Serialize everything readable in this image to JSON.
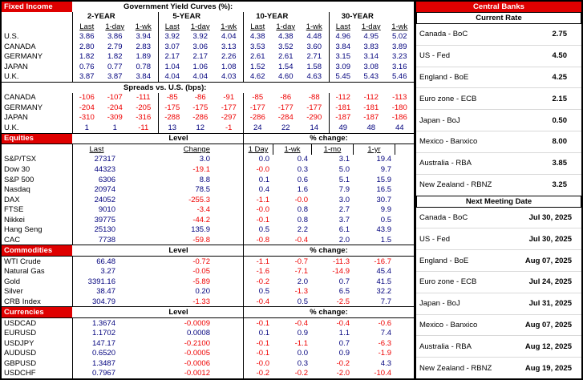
{
  "colors": {
    "section_red": "#df0000",
    "value_navy": "#00007d",
    "negative_red": "#ee0000"
  },
  "fixed_income": {
    "section_label": "Fixed Income",
    "title": "Government Yield Curves (%):",
    "groups": [
      "2-YEAR",
      "5-YEAR",
      "10-YEAR",
      "30-YEAR"
    ],
    "subheaders": [
      "Last",
      "1-day",
      "1-wk"
    ],
    "yields": [
      {
        "label": "U.S.",
        "values": [
          "3.86",
          "3.86",
          "3.94",
          "3.92",
          "3.92",
          "4.04",
          "4.38",
          "4.38",
          "4.48",
          "4.96",
          "4.95",
          "5.02"
        ]
      },
      {
        "label": "CANADA",
        "values": [
          "2.80",
          "2.79",
          "2.83",
          "3.07",
          "3.06",
          "3.13",
          "3.53",
          "3.52",
          "3.60",
          "3.84",
          "3.83",
          "3.89"
        ]
      },
      {
        "label": "GERMANY",
        "values": [
          "1.82",
          "1.82",
          "1.89",
          "2.17",
          "2.17",
          "2.26",
          "2.61",
          "2.61",
          "2.71",
          "3.15",
          "3.14",
          "3.23"
        ]
      },
      {
        "label": "JAPAN",
        "values": [
          "0.76",
          "0.77",
          "0.78",
          "1.04",
          "1.06",
          "1.08",
          "1.52",
          "1.54",
          "1.58",
          "3.09",
          "3.08",
          "3.16"
        ]
      },
      {
        "label": "U.K.",
        "values": [
          "3.87",
          "3.87",
          "3.84",
          "4.04",
          "4.04",
          "4.03",
          "4.62",
          "4.60",
          "4.63",
          "5.45",
          "5.43",
          "5.46"
        ]
      }
    ],
    "spreads_title": "Spreads vs. U.S. (bps):",
    "spreads": [
      {
        "label": "CANADA",
        "values": [
          "-106",
          "-107",
          "-111",
          "-85",
          "-86",
          "-91",
          "-85",
          "-86",
          "-88",
          "-112",
          "-112",
          "-113"
        ]
      },
      {
        "label": "GERMANY",
        "values": [
          "-204",
          "-204",
          "-205",
          "-175",
          "-175",
          "-177",
          "-177",
          "-177",
          "-177",
          "-181",
          "-181",
          "-180"
        ]
      },
      {
        "label": "JAPAN",
        "values": [
          "-310",
          "-309",
          "-316",
          "-288",
          "-286",
          "-297",
          "-286",
          "-284",
          "-290",
          "-187",
          "-187",
          "-186"
        ]
      },
      {
        "label": "U.K.",
        "values": [
          "1",
          "1",
          "-11",
          "13",
          "12",
          "-1",
          "24",
          "22",
          "14",
          "49",
          "48",
          "44"
        ]
      }
    ]
  },
  "equities": {
    "section_label": "Equities",
    "level_label": "Level",
    "pct_label": "% change:",
    "subheaders": [
      "Last",
      "Change",
      "1 Day",
      "1-wk",
      "1-mo",
      "1-yr"
    ],
    "rows": [
      {
        "label": "S&P/TSX",
        "last": "27317",
        "change": "3.0",
        "pct": [
          "0.0",
          "0.4",
          "3.1",
          "19.4"
        ]
      },
      {
        "label": "Dow 30",
        "last": "44323",
        "change": "-19.1",
        "pct": [
          "-0.0",
          "0.3",
          "5.0",
          "9.7"
        ]
      },
      {
        "label": "S&P 500",
        "last": "6306",
        "change": "8.8",
        "pct": [
          "0.1",
          "0.6",
          "5.1",
          "15.9"
        ]
      },
      {
        "label": "Nasdaq",
        "last": "20974",
        "change": "78.5",
        "pct": [
          "0.4",
          "1.6",
          "7.9",
          "16.5"
        ]
      },
      {
        "label": "DAX",
        "last": "24052",
        "change": "-255.3",
        "pct": [
          "-1.1",
          "-0.0",
          "3.0",
          "30.7"
        ]
      },
      {
        "label": "FTSE",
        "last": "9010",
        "change": "-3.4",
        "pct": [
          "-0.0",
          "0.8",
          "2.7",
          "9.9"
        ]
      },
      {
        "label": "Nikkei",
        "last": "39775",
        "change": "-44.2",
        "pct": [
          "-0.1",
          "0.8",
          "3.7",
          "0.5"
        ]
      },
      {
        "label": "Hang Seng",
        "last": "25130",
        "change": "135.9",
        "pct": [
          "0.5",
          "2.2",
          "6.1",
          "43.9"
        ]
      },
      {
        "label": "CAC",
        "last": "7738",
        "change": "-59.8",
        "pct": [
          "-0.8",
          "-0.4",
          "2.0",
          "1.5"
        ]
      }
    ]
  },
  "commodities": {
    "section_label": "Commodities",
    "level_label": "Level",
    "pct_label": "% change:",
    "rows": [
      {
        "label": "WTI Crude",
        "last": "66.48",
        "change": "-0.72",
        "pct": [
          "-1.1",
          "-0.7",
          "-11.3",
          "-16.7"
        ]
      },
      {
        "label": "Natural Gas",
        "last": "3.27",
        "change": "-0.05",
        "pct": [
          "-1.6",
          "-7.1",
          "-14.9",
          "45.4"
        ]
      },
      {
        "label": "Gold",
        "last": "3391.16",
        "change": "-5.89",
        "pct": [
          "-0.2",
          "2.0",
          "0.7",
          "41.5"
        ]
      },
      {
        "label": "Silver",
        "last": "38.47",
        "change": "0.20",
        "pct": [
          "0.5",
          "-1.3",
          "6.5",
          "32.2"
        ]
      },
      {
        "label": "CRB Index",
        "last": "304.79",
        "change": "-1.33",
        "pct": [
          "-0.4",
          "0.5",
          "-2.5",
          "7.7"
        ]
      }
    ]
  },
  "currencies": {
    "section_label": "Currencies",
    "level_label": "Level",
    "pct_label": "% change:",
    "rows": [
      {
        "label": "USDCAD",
        "last": "1.3674",
        "change": "-0.0009",
        "pct": [
          "-0.1",
          "-0.4",
          "-0.4",
          "-0.6"
        ]
      },
      {
        "label": "EURUSD",
        "last": "1.1702",
        "change": "0.0008",
        "pct": [
          "0.1",
          "0.9",
          "1.1",
          "7.4"
        ]
      },
      {
        "label": "USDJPY",
        "last": "147.17",
        "change": "-0.2100",
        "pct": [
          "-0.1",
          "-1.1",
          "0.7",
          "-6.3"
        ]
      },
      {
        "label": "AUDUSD",
        "last": "0.6520",
        "change": "-0.0005",
        "pct": [
          "-0.1",
          "0.0",
          "0.9",
          "-1.9"
        ]
      },
      {
        "label": "GBPUSD",
        "last": "1.3487",
        "change": "-0.0006",
        "pct": [
          "-0.0",
          "0.3",
          "-0.2",
          "4.3"
        ]
      },
      {
        "label": "USDCHF",
        "last": "0.7967",
        "change": "-0.0012",
        "pct": [
          "-0.2",
          "-0.2",
          "-2.0",
          "-10.4"
        ]
      }
    ]
  },
  "central_banks": {
    "title": "Central Banks",
    "current_rate_title": "Current Rate",
    "rates": [
      {
        "label": "Canada - BoC",
        "value": "2.75"
      },
      {
        "label": "US - Fed",
        "value": "4.50"
      },
      {
        "label": "England - BoE",
        "value": "4.25"
      },
      {
        "label": "Euro zone - ECB",
        "value": "2.15"
      },
      {
        "label": "Japan - BoJ",
        "value": "0.50"
      },
      {
        "label": "Mexico - Banxico",
        "value": "8.00"
      },
      {
        "label": "Australia - RBA",
        "value": "3.85"
      },
      {
        "label": "New Zealand - RBNZ",
        "value": "3.25"
      }
    ],
    "meeting_title": "Next Meeting Date",
    "meetings": [
      {
        "label": "Canada - BoC",
        "value": "Jul 30, 2025"
      },
      {
        "label": "US - Fed",
        "value": "Jul 30, 2025"
      },
      {
        "label": "England - BoE",
        "value": "Aug 07, 2025"
      },
      {
        "label": "Euro zone - ECB",
        "value": "Jul 24, 2025"
      },
      {
        "label": "Japan - BoJ",
        "value": "Jul 31, 2025"
      },
      {
        "label": "Mexico - Banxico",
        "value": "Aug 07, 2025"
      },
      {
        "label": "Australia - RBA",
        "value": "Aug 12, 2025"
      },
      {
        "label": "New Zealand - RBNZ",
        "value": "Aug 19, 2025"
      }
    ]
  }
}
